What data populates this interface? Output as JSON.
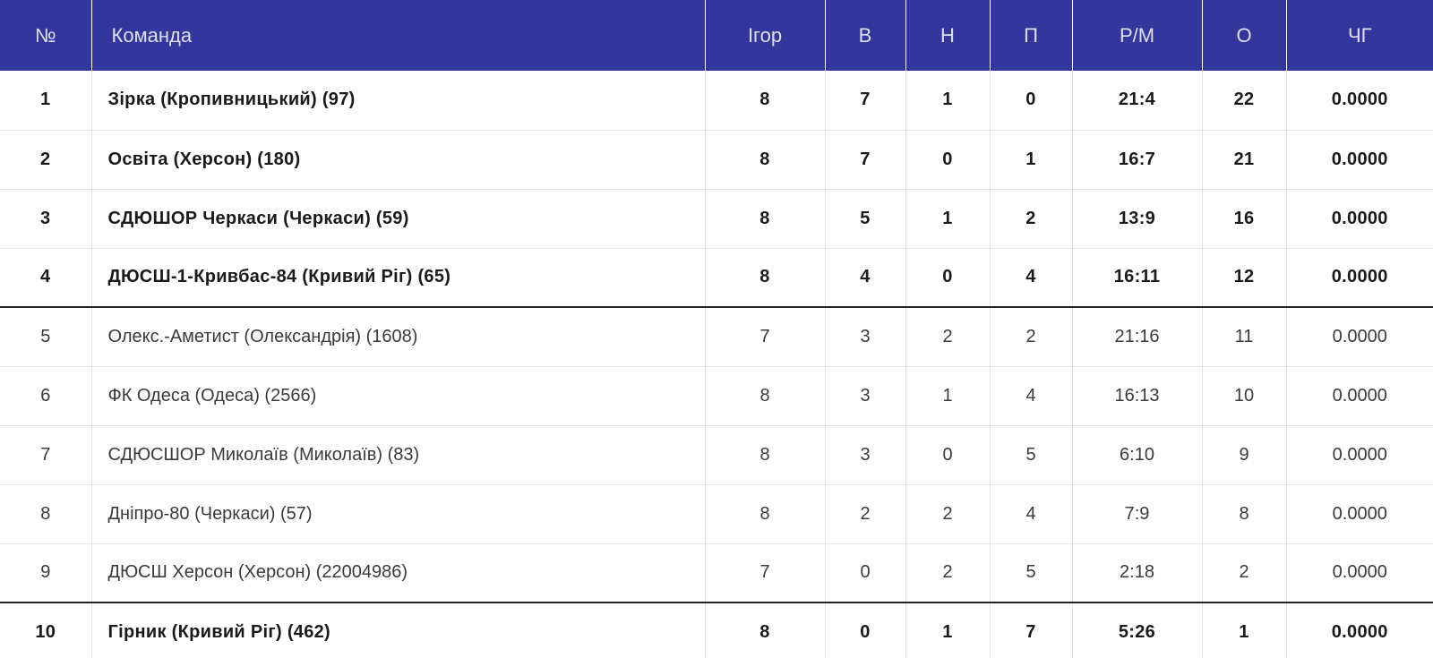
{
  "colors": {
    "header_bg": "#33369c",
    "header_text": "#dfe0f5",
    "zone_line": "#222222"
  },
  "header": {
    "num": "№",
    "team": "Команда",
    "games": "Ігор",
    "wins": "В",
    "draws": "Н",
    "losses": "П",
    "goals": "Р/М",
    "points": "О",
    "chg": "ЧГ"
  },
  "rows": [
    {
      "num": "1",
      "team": "Зірка (Кропивницький) (97)",
      "games": "8",
      "wins": "7",
      "draws": "1",
      "losses": "0",
      "goals": "21:4",
      "points": "22",
      "chg": "0.0000"
    },
    {
      "num": "2",
      "team": "Освіта (Херсон) (180)",
      "games": "8",
      "wins": "7",
      "draws": "0",
      "losses": "1",
      "goals": "16:7",
      "points": "21",
      "chg": "0.0000"
    },
    {
      "num": "3",
      "team": "СДЮШОР Черкаси (Черкаси) (59)",
      "games": "8",
      "wins": "5",
      "draws": "1",
      "losses": "2",
      "goals": "13:9",
      "points": "16",
      "chg": "0.0000"
    },
    {
      "num": "4",
      "team": "ДЮСШ-1-Кривбас-84 (Кривий Ріг) (65)",
      "games": "8",
      "wins": "4",
      "draws": "0",
      "losses": "4",
      "goals": "16:11",
      "points": "12",
      "chg": "0.0000"
    },
    {
      "num": "5",
      "team": "Олекс.-Аметист (Олександрія) (1608)",
      "games": "7",
      "wins": "3",
      "draws": "2",
      "losses": "2",
      "goals": "21:16",
      "points": "11",
      "chg": "0.0000"
    },
    {
      "num": "6",
      "team": "ФК Одеса (Одеса) (2566)",
      "games": "8",
      "wins": "3",
      "draws": "1",
      "losses": "4",
      "goals": "16:13",
      "points": "10",
      "chg": "0.0000"
    },
    {
      "num": "7",
      "team": "СДЮСШОР Миколаїв (Миколаїв) (83)",
      "games": "8",
      "wins": "3",
      "draws": "0",
      "losses": "5",
      "goals": "6:10",
      "points": "9",
      "chg": "0.0000"
    },
    {
      "num": "8",
      "team": "Дніпро-80 (Черкаси) (57)",
      "games": "8",
      "wins": "2",
      "draws": "2",
      "losses": "4",
      "goals": "7:9",
      "points": "8",
      "chg": "0.0000"
    },
    {
      "num": "9",
      "team": "ДЮСШ Херсон (Херсон) (22004986)",
      "games": "7",
      "wins": "0",
      "draws": "2",
      "losses": "5",
      "goals": "2:18",
      "points": "2",
      "chg": "0.0000"
    },
    {
      "num": "10",
      "team": "Гірник (Кривий Ріг) (462)",
      "games": "8",
      "wins": "0",
      "draws": "1",
      "losses": "7",
      "goals": "5:26",
      "points": "1",
      "chg": "0.0000"
    }
  ]
}
